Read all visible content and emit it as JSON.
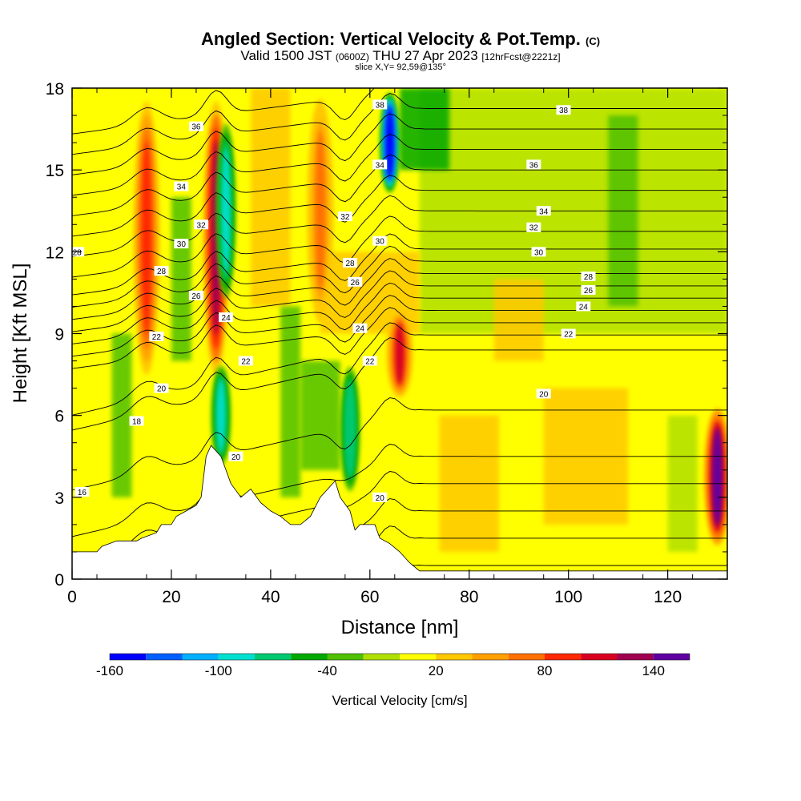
{
  "header": {
    "title_main": "Angled Section: Vertical Velocity & Pot.Temp.",
    "title_suffix": "(C)",
    "valid_prefix": "Valid 1500 JST",
    "valid_utc": "(0600Z)",
    "valid_date": "THU 27 Apr 2023",
    "forecast": "[12hrFcst@2221z]",
    "slice": "slice X,Y= 92,59@135°"
  },
  "chart_data": {
    "type": "heatmap",
    "xlabel": "Distance [nm]",
    "ylabel": "Height [Kft MSL]",
    "xlim": [
      0,
      132
    ],
    "ylim": [
      0,
      18
    ],
    "xticks": [
      "0",
      "20",
      "40",
      "60",
      "80",
      "100",
      "120"
    ],
    "yticks": [
      "0",
      "3",
      "6",
      "9",
      "12",
      "15",
      "18"
    ],
    "colorbar": {
      "label": "Vertical Velocity [cm/s]",
      "range": [
        -160,
        160
      ],
      "tick_labels": [
        "-160",
        "-100",
        "-40",
        "20",
        "80",
        "140"
      ],
      "colors": [
        "#0000ff",
        "#0060ff",
        "#00b0ff",
        "#00e0d0",
        "#00c870",
        "#00a800",
        "#50c000",
        "#b0e000",
        "#ffff00",
        "#ffc800",
        "#ffa000",
        "#ff7000",
        "#ff2800",
        "#d80020",
        "#a00050",
        "#6000a0"
      ]
    },
    "updrafts_w_cms": [
      {
        "x": 15,
        "z_range": [
          7,
          18
        ],
        "w_max": 80
      },
      {
        "x": 29,
        "z_range": [
          7,
          18
        ],
        "w_max": 120
      },
      {
        "x": 50,
        "z_range": [
          9,
          18
        ],
        "w_max": 60
      },
      {
        "x": 66,
        "z_range": [
          6.5,
          10
        ],
        "w_max": 100
      },
      {
        "x": 130,
        "z_range": [
          1,
          6.5
        ],
        "w_max": 140
      }
    ],
    "downdrafts_w_cms": [
      {
        "x": 31,
        "z_range": [
          10,
          17
        ],
        "w_min": -100
      },
      {
        "x": 64,
        "z_range": [
          14,
          18
        ],
        "w_min": -160
      },
      {
        "x": 30,
        "z_range": [
          4,
          8
        ],
        "w_min": -100
      },
      {
        "x": 56,
        "z_range": [
          3,
          8
        ],
        "w_min": -80
      }
    ],
    "isentrope_labels_C": [
      "16",
      "18",
      "20",
      "20",
      "20",
      "20",
      "22",
      "22",
      "22",
      "22",
      "24",
      "24",
      "24",
      "26",
      "26",
      "26",
      "28",
      "28",
      "28",
      "28",
      "30",
      "30",
      "30",
      "32",
      "32",
      "32",
      "34",
      "34",
      "34",
      "36",
      "36",
      "38",
      "38"
    ],
    "terrain_kft": [
      [
        0,
        1
      ],
      [
        5,
        1
      ],
      [
        6,
        1.2
      ],
      [
        9,
        1.4
      ],
      [
        13,
        1.4
      ],
      [
        14,
        1.5
      ],
      [
        17,
        1.7
      ],
      [
        18,
        2
      ],
      [
        20,
        2
      ],
      [
        21,
        2.3
      ],
      [
        23,
        2.5
      ],
      [
        25,
        2.7
      ],
      [
        26,
        3
      ],
      [
        27,
        4.5
      ],
      [
        28,
        4.9
      ],
      [
        30,
        4.5
      ],
      [
        32,
        3.5
      ],
      [
        34,
        3
      ],
      [
        36,
        3.3
      ],
      [
        38,
        2.8
      ],
      [
        40,
        2.5
      ],
      [
        42,
        2.3
      ],
      [
        44,
        2
      ],
      [
        46,
        2
      ],
      [
        48,
        2.3
      ],
      [
        50,
        3
      ],
      [
        53,
        3.6
      ],
      [
        54,
        3
      ],
      [
        56,
        2.5
      ],
      [
        57,
        1.8
      ],
      [
        58,
        2
      ],
      [
        59,
        2
      ],
      [
        61,
        2
      ],
      [
        62,
        1.5
      ],
      [
        64,
        1.3
      ],
      [
        66,
        1
      ],
      [
        68,
        0.6
      ],
      [
        70,
        0.3
      ],
      [
        132,
        0.3
      ]
    ]
  }
}
